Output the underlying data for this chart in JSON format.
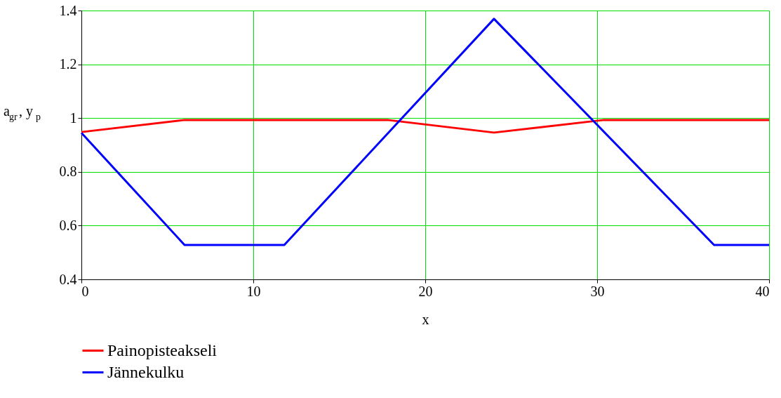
{
  "chart_data": {
    "type": "line",
    "xlabel": "x",
    "ylabel": "a$_{gr}$, y$_{p}$",
    "xlim": [
      0,
      40
    ],
    "xticks": [
      0,
      10,
      20,
      30,
      40
    ],
    "ylim": [
      0.4,
      1.4
    ],
    "yticks": [
      0.4,
      0.6,
      0.8,
      1,
      1.2,
      1.4
    ],
    "grid": true,
    "legend": "bottom",
    "line_style": "solid",
    "marker": "none",
    "series": [
      {
        "name": "Painopisteakseli",
        "color": "#ff0000",
        "x": [
          0,
          6,
          17.8,
          24,
          30.4,
          40
        ],
        "values": [
          0.948,
          0.993,
          0.993,
          0.946,
          0.993,
          0.993
        ]
      },
      {
        "name": "Jännekulku",
        "color": "#0000ff",
        "x": [
          0,
          6,
          11.8,
          24,
          36.8,
          40
        ],
        "values": [
          0.945,
          0.528,
          0.528,
          1.369,
          0.528,
          0.528
        ]
      }
    ]
  }
}
